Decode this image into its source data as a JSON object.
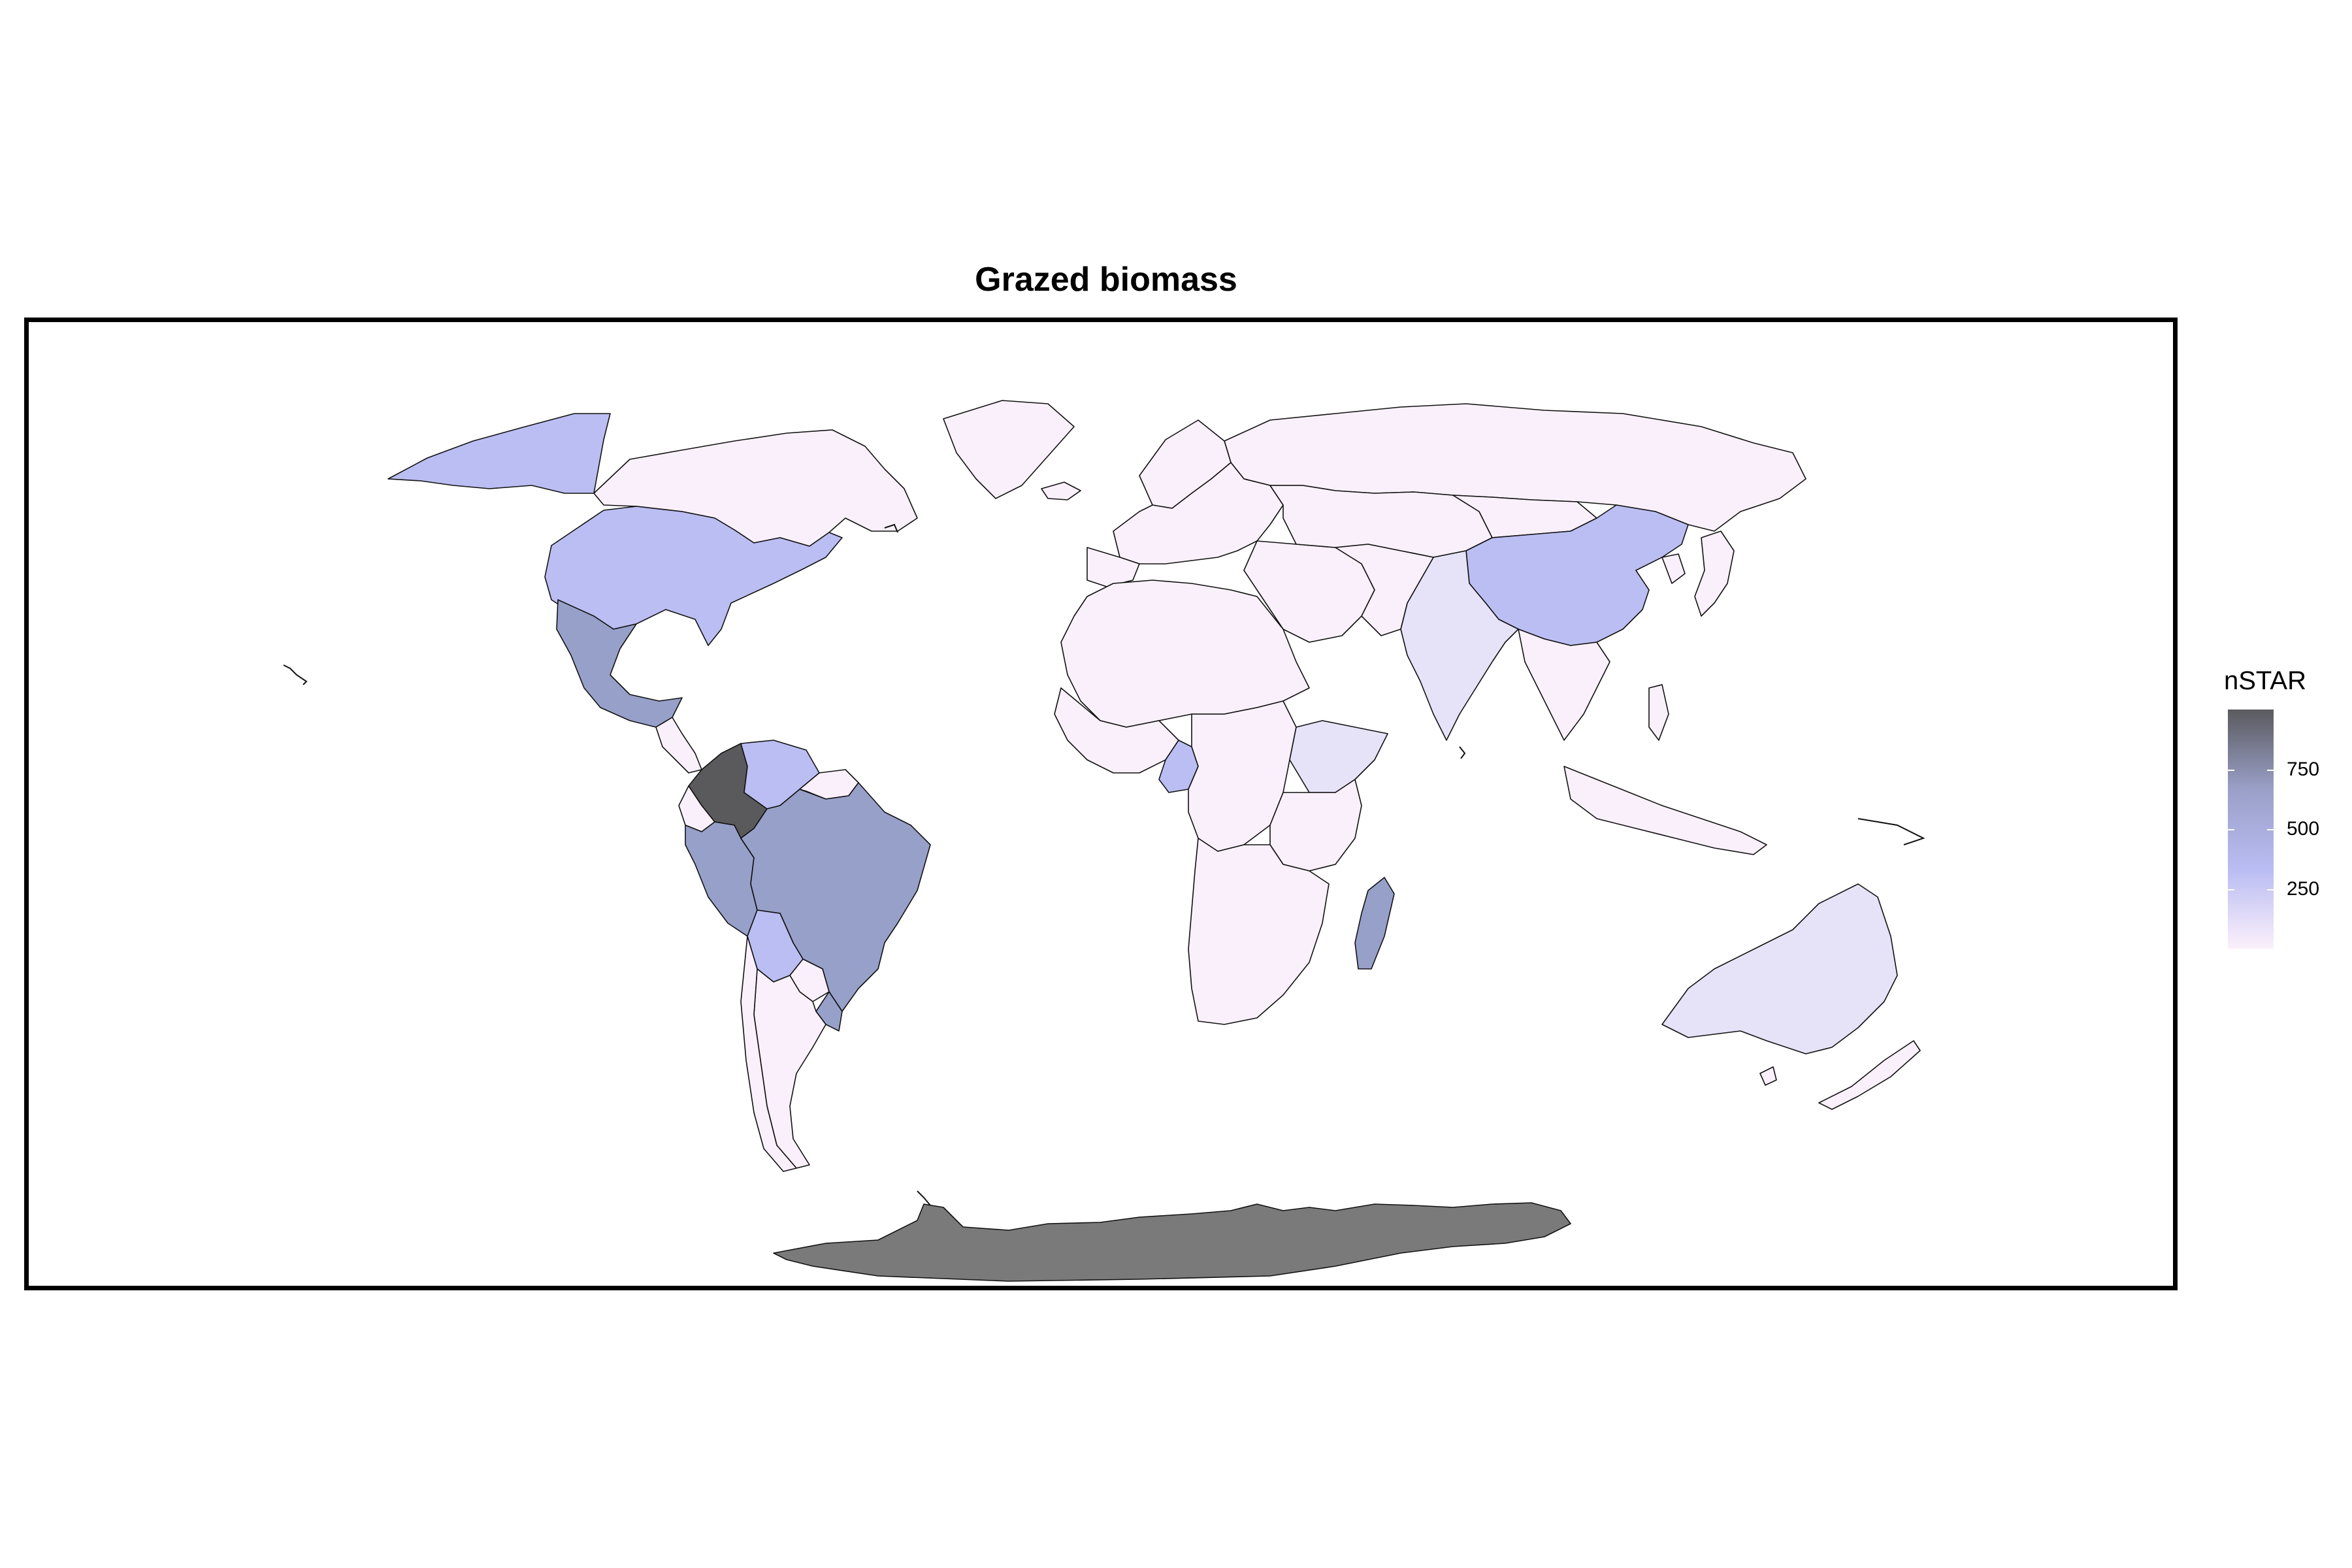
{
  "title": "Grazed biomass",
  "legend": {
    "title": "nSTAR",
    "ticks": [
      {
        "value": 750,
        "label": "750"
      },
      {
        "value": 500,
        "label": "500"
      },
      {
        "value": 250,
        "label": "250"
      }
    ],
    "range": [
      0,
      1000
    ],
    "gradient": [
      "#fbf0fb",
      "#b9bcf2",
      "#9aa0c8",
      "#5a5a5e"
    ]
  },
  "colors": {
    "very_low": "#faf0fb",
    "low": "#e6e2f8",
    "light_blue": "#bbbef2",
    "mid": "#97a0c9",
    "dark": "#5a5a5c",
    "antarctica": "#7a7a7a",
    "border": "#111111"
  },
  "regions": [
    {
      "name": "Alaska",
      "shade": "light_blue"
    },
    {
      "name": "United States",
      "shade": "light_blue"
    },
    {
      "name": "Canada",
      "shade": "very_low"
    },
    {
      "name": "Mexico",
      "shade": "mid"
    },
    {
      "name": "Colombia",
      "shade": "dark"
    },
    {
      "name": "Venezuela",
      "shade": "light_blue"
    },
    {
      "name": "Brazil",
      "shade": "mid"
    },
    {
      "name": "Peru",
      "shade": "mid"
    },
    {
      "name": "Bolivia",
      "shade": "light_blue"
    },
    {
      "name": "Argentina",
      "shade": "very_low"
    },
    {
      "name": "Uruguay",
      "shade": "mid"
    },
    {
      "name": "Madagascar",
      "shade": "mid"
    },
    {
      "name": "Cameroon",
      "shade": "light_blue"
    },
    {
      "name": "Ethiopia",
      "shade": "low"
    },
    {
      "name": "China",
      "shade": "light_blue"
    },
    {
      "name": "India",
      "shade": "low"
    },
    {
      "name": "Australia",
      "shade": "low"
    },
    {
      "name": "Antarctica",
      "shade": "antarctica"
    }
  ]
}
